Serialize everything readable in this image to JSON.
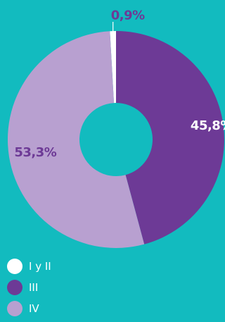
{
  "chart_data": {
    "type": "pie",
    "title": "",
    "categories": [
      "I y II",
      "III",
      "IV"
    ],
    "values": [
      0.9,
      45.8,
      53.3
    ],
    "data_labels": [
      "0,9%",
      "45,8%",
      "53,3%"
    ],
    "colors": [
      "#ffffff",
      "#6d3a96",
      "#b8a0d0"
    ],
    "label_colors": [
      "#6d3a96",
      "#ffffff",
      "#6d3a96"
    ],
    "legend_position": "bottom-left",
    "background": "#12bbbf"
  }
}
